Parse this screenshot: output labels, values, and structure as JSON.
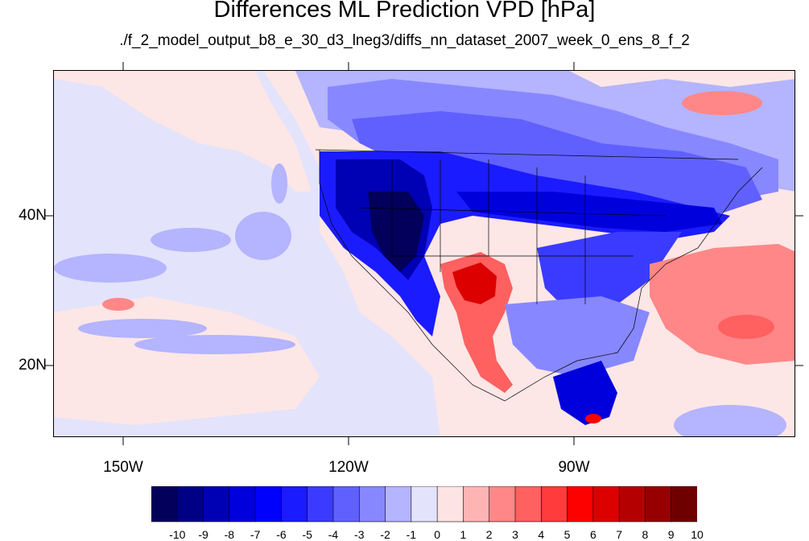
{
  "title": "Differences ML Prediction VPD [hPa]",
  "subtitle": "./f_2_model_output_b8_e_30_d3_lneg3/diffs_nn_dataset_2007_week_0_ens_8_f_2",
  "axes": {
    "lon_labels": [
      "150W",
      "120W",
      "90W"
    ],
    "lat_labels": [
      "40N",
      "20N"
    ]
  },
  "colorbar": {
    "labels": [
      "-10",
      "-9",
      "-8",
      "-7",
      "-6",
      "-5",
      "-4",
      "-3",
      "-2",
      "-1",
      "0",
      "1",
      "2",
      "3",
      "4",
      "5",
      "6",
      "7",
      "8",
      "9",
      "10"
    ],
    "colors": [
      "#02005b",
      "#000087",
      "#0000b4",
      "#0000dc",
      "#0000fd",
      "#1b1bff",
      "#3b3bff",
      "#6060ff",
      "#8787ff",
      "#b4b4ff",
      "#e3e3fb",
      "#fde3e3",
      "#ffb4b4",
      "#ff8787",
      "#ff6060",
      "#ff3b3b",
      "#fd0000",
      "#dc0000",
      "#b40000",
      "#960000",
      "#6f0000"
    ]
  },
  "colors": {
    "background_field": "#fde6e6",
    "pacific_field": "#e3e3fb"
  }
}
